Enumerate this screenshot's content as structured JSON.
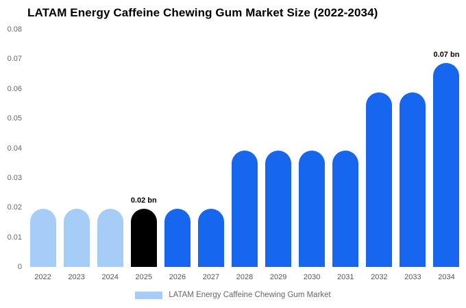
{
  "chart_data": {
    "type": "bar",
    "title": "LATAM Energy Caffeine Chewing Gum Market Size (2022-2034)",
    "categories": [
      "2022",
      "2023",
      "2024",
      "2025",
      "2026",
      "2027",
      "2028",
      "2029",
      "2030",
      "2031",
      "2032",
      "2033",
      "2034"
    ],
    "values": [
      0.02,
      0.02,
      0.02,
      0.02,
      0.02,
      0.02,
      0.04,
      0.04,
      0.04,
      0.04,
      0.06,
      0.06,
      0.07
    ],
    "unit": "bn",
    "xlabel": "",
    "ylabel": "",
    "ylim": [
      0,
      0.08
    ],
    "ytick_labels": [
      "0",
      "0.01",
      "0.02",
      "0.03",
      "0.04",
      "0.05",
      "0.06",
      "0.07",
      "0.08"
    ],
    "grid": false,
    "bar_colors": [
      "#a6cdf8",
      "#a6cdf8",
      "#a6cdf8",
      "#000000",
      "#1766f0",
      "#1766f0",
      "#1766f0",
      "#1766f0",
      "#1766f0",
      "#1766f0",
      "#1766f0",
      "#1766f0",
      "#1766f0"
    ],
    "annotations": [
      {
        "year": "2025",
        "text": "0.02 bn"
      },
      {
        "year": "2034",
        "text": "0.07 bn"
      }
    ],
    "legend_position": "bottom-center",
    "legend": {
      "label": "LATAM Energy Caffeine Chewing Gum Market",
      "swatch_color": "#a6cdf8"
    }
  }
}
